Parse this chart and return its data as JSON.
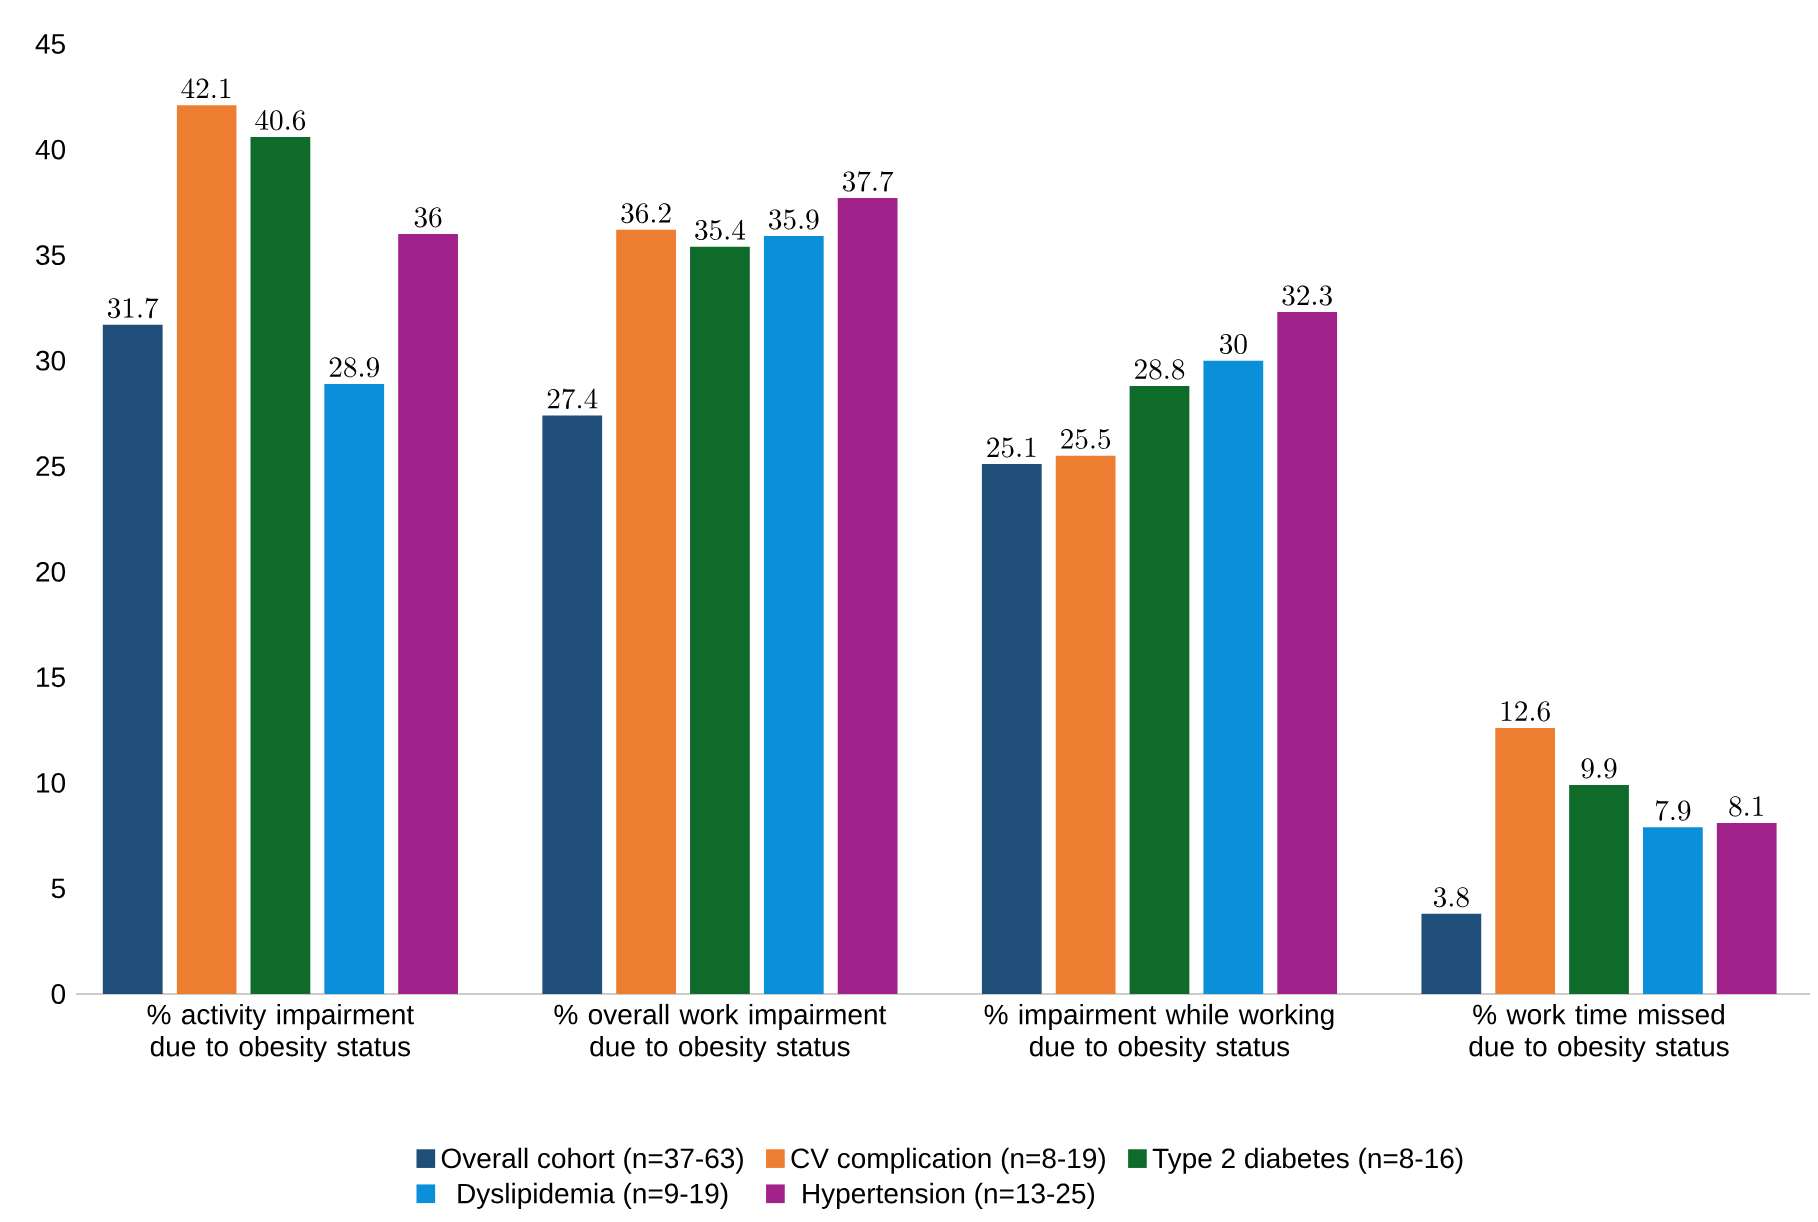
{
  "chart_data": {
    "type": "bar",
    "categories": [
      "% activity impairment due to obesity status",
      "% overall work impairment due to obesity status",
      "% impairment while working due to obesity status",
      "% work time missed due to obesity status"
    ],
    "series": [
      {
        "name": "Overall cohort (n=37-63)",
        "color": "#1f4e79",
        "values": [
          31.7,
          27.4,
          25.1,
          3.8
        ]
      },
      {
        "name": "CV complication (n=8-19)",
        "color": "#ed7d31",
        "values": [
          42.1,
          36.2,
          25.5,
          12.6
        ]
      },
      {
        "name": "Type 2 diabetes (n=8-16)",
        "color": "#0f6b2a",
        "values": [
          40.6,
          35.4,
          28.8,
          9.9
        ]
      },
      {
        "name": "Dyslipidemia (n=9-19)",
        "color": "#0b8fd8",
        "values": [
          28.9,
          35.9,
          30,
          7.9
        ]
      },
      {
        "name": "Hypertension (n=13-25)",
        "color": "#a0228a",
        "values": [
          36,
          37.7,
          32.3,
          8.1
        ]
      }
    ],
    "ylim": [
      0,
      45
    ],
    "yticks": [
      0,
      5,
      10,
      15,
      20,
      25,
      30,
      35,
      40,
      45
    ],
    "data_labels": true,
    "legend": "bottom",
    "grid": false
  }
}
